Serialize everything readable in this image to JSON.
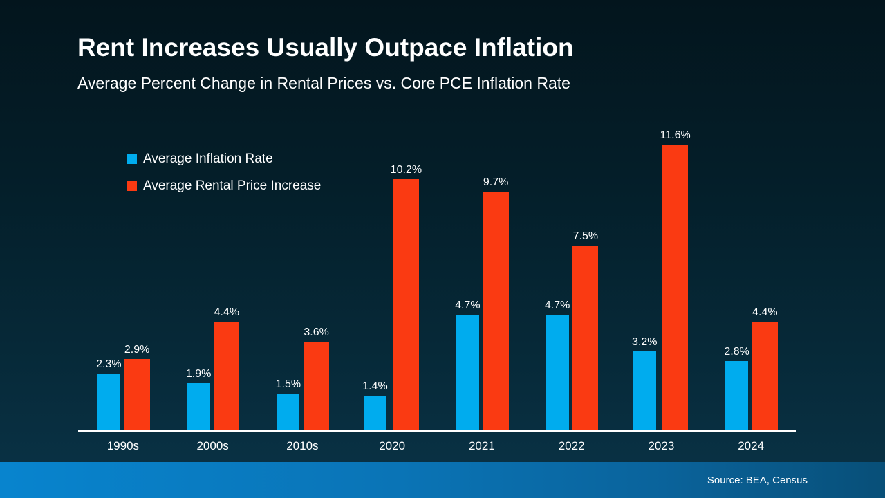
{
  "chart_data": {
    "type": "bar",
    "title": "Rent Increases Usually Outpace Inflation",
    "subtitle": "Average Percent Change in Rental Prices vs. Core PCE Inflation Rate",
    "categories": [
      "1990s",
      "2000s",
      "2010s",
      "2020",
      "2021",
      "2022",
      "2023",
      "2024"
    ],
    "series": [
      {
        "name": "Average Inflation Rate",
        "color": "#00ACEE",
        "values": [
          2.3,
          1.9,
          1.5,
          1.4,
          4.7,
          4.7,
          3.2,
          2.8
        ],
        "labels": [
          "2.3%",
          "1.9%",
          "1.5%",
          "1.4%",
          "4.7%",
          "4.7%",
          "3.2%",
          "2.8%"
        ]
      },
      {
        "name": "Average Rental Price Increase",
        "color": "#FA3A12",
        "values": [
          2.9,
          4.4,
          3.6,
          10.2,
          9.7,
          7.5,
          11.6,
          4.4
        ],
        "labels": [
          "2.9%",
          "4.4%",
          "3.6%",
          "10.2%",
          "9.7%",
          "7.5%",
          "11.6%",
          "4.4%"
        ]
      }
    ],
    "value_suffix": "%",
    "ylim": [
      0,
      12
    ],
    "grid": false,
    "y_axis_visible": false,
    "legend_position": "top-left",
    "data_labels": true
  },
  "footer": {
    "source": "Source: BEA, Census"
  },
  "colors": {
    "background_top": "#03151D",
    "background_bottom": "#0A3347",
    "inflation_blue": "#00ACEE",
    "rental_red": "#FA3A12",
    "axis_line": "#FFFFFF",
    "text": "#FFFFFF",
    "footer_gradient_left": "#0884CE",
    "footer_gradient_right": "#084F78"
  }
}
